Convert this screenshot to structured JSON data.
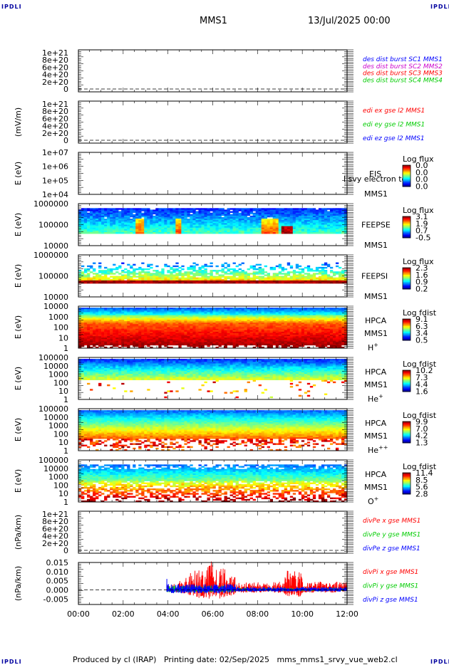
{
  "header": {
    "corner_label": "IPDLI",
    "title": "MMS1",
    "date": "13/Jul/2025 00:00"
  },
  "footer": {
    "producer": "Produced by cl (IRAP)",
    "printing_date": "Printing date: 02/Sep/2025",
    "script": "mms_mms1_srvy_vue_web2.cl"
  },
  "colors": {
    "red": "#ff0000",
    "green": "#00cc00",
    "blue": "#0000ff",
    "magenta": "#cc00cc",
    "navy": "#0000a0"
  },
  "chart_data": [
    {
      "id": "des-dist",
      "type": "line",
      "ylabel": "",
      "yticks": [
        "1e+21",
        "8e+20",
        "6e+20",
        "4e+20",
        "2e+20",
        "0"
      ],
      "ylim": [
        0,
        1e+21
      ],
      "legend": [
        {
          "text": "des dist burst SC1 MMS1",
          "color": "#0000ff"
        },
        {
          "text": "des dist burst SC2 MMS2",
          "color": "#cc00cc"
        },
        {
          "text": "des dist burst SC3 MMS3",
          "color": "#ff0000"
        },
        {
          "text": "des dist burst SC4 MMS4",
          "color": "#00cc00"
        }
      ],
      "series": [],
      "zero_line": true
    },
    {
      "id": "edi-e",
      "type": "line",
      "ylabel": "(mV/m)",
      "yticks": [
        "1e+21",
        "8e+20",
        "6e+20",
        "4e+20",
        "2e+20",
        "0"
      ],
      "ylim": [
        0,
        1e+21
      ],
      "legend": [
        {
          "text": "edi ex gse l2 MMS1",
          "color": "#ff0000"
        },
        {
          "text": "edi ey gse l2 MMS1",
          "color": "#00cc00"
        },
        {
          "text": "edi ez gse l2 MMS1",
          "color": "#0000ff"
        }
      ],
      "series": [],
      "zero_line": true
    },
    {
      "id": "eis",
      "type": "heatmap",
      "ylabel": "E (eV)",
      "yticks": [
        "1e+07",
        "1e+06",
        "1e+05",
        "1e+04"
      ],
      "labels": [
        "EIS",
        "MMS1"
      ],
      "overlay_text": "l svy electron to",
      "colorbar_title": "Log flux",
      "colorbar_ticks": [
        "0.0",
        "0.0",
        "0.0",
        "0.0"
      ],
      "empty": true
    },
    {
      "id": "feeps-e",
      "type": "heatmap",
      "ylabel": "E (eV)",
      "yticks": [
        "1000000",
        "100000",
        "10000"
      ],
      "labels": [
        "FEEPSE",
        "MMS1"
      ],
      "colorbar_title": "Log flux",
      "colorbar_ticks": [
        "3.1",
        "1.9",
        "0.7",
        "-0.5"
      ],
      "empty": false
    },
    {
      "id": "feeps-i",
      "type": "heatmap",
      "ylabel": "E (eV)",
      "yticks": [
        "1000000",
        "100000",
        "10000"
      ],
      "labels": [
        "FEEPSI",
        "MMS1"
      ],
      "colorbar_title": "Log flux",
      "colorbar_ticks": [
        "2.3",
        "1.6",
        "0.9",
        "0.2"
      ],
      "empty": false
    },
    {
      "id": "hpca-h",
      "type": "heatmap",
      "ylabel": "E (eV)",
      "yticks": [
        "10000",
        "1000",
        "100",
        "10",
        "1"
      ],
      "labels": [
        "HPCA",
        "MMS1",
        "H+"
      ],
      "colorbar_title": "Log fdist",
      "colorbar_ticks": [
        "9.1",
        "6.3",
        "3.4",
        "0.5"
      ],
      "empty": false
    },
    {
      "id": "hpca-he",
      "type": "heatmap",
      "ylabel": "E (eV)",
      "yticks": [
        "100000",
        "10000",
        "1000",
        "100",
        "10",
        "1"
      ],
      "labels": [
        "HPCA",
        "MMS1",
        "He+"
      ],
      "colorbar_title": "Log fdist",
      "colorbar_ticks": [
        "10.2",
        "7.3",
        "4.4",
        "1.6"
      ],
      "empty": false
    },
    {
      "id": "hpca-he2",
      "type": "heatmap",
      "ylabel": "E (eV)",
      "yticks": [
        "100000",
        "10000",
        "1000",
        "100",
        "10",
        "1"
      ],
      "labels": [
        "HPCA",
        "MMS1",
        "He++"
      ],
      "colorbar_title": "Log fdist",
      "colorbar_ticks": [
        "9.9",
        "7.0",
        "4.2",
        "1.3"
      ],
      "empty": false
    },
    {
      "id": "hpca-o",
      "type": "heatmap",
      "ylabel": "E (eV)",
      "yticks": [
        "100000",
        "10000",
        "1000",
        "100",
        "10",
        "1"
      ],
      "labels": [
        "HPCA",
        "MMS1",
        "O+"
      ],
      "colorbar_title": "Log fdist",
      "colorbar_ticks": [
        "11.4",
        "8.5",
        "5.6",
        "2.8"
      ],
      "empty": false
    },
    {
      "id": "divpe",
      "type": "line",
      "ylabel": "(nPa/km)",
      "yticks": [
        "1e+21",
        "8e+20",
        "6e+20",
        "4e+20",
        "2e+20",
        "0"
      ],
      "ylim": [
        0,
        1e+21
      ],
      "legend": [
        {
          "text": "divPe x gse MMS1",
          "color": "#ff0000"
        },
        {
          "text": "divPe y gse MMS1",
          "color": "#00cc00"
        },
        {
          "text": "divPe z gse MMS1",
          "color": "#0000ff"
        }
      ],
      "series": [],
      "zero_line": true
    },
    {
      "id": "divpi",
      "type": "line",
      "ylabel": "(nPa/km)",
      "yticks": [
        "0.015",
        "0.010",
        "0.005",
        "0.000",
        "-0.005"
      ],
      "ylim": [
        -0.008,
        0.015
      ],
      "legend": [
        {
          "text": "divPi x gse MMS1",
          "color": "#ff0000"
        },
        {
          "text": "divPi y gse MMS1",
          "color": "#00cc00"
        },
        {
          "text": "divPi z gse MMS1",
          "color": "#0000ff"
        }
      ],
      "series": [
        {
          "name": "divPi x gse MMS1",
          "color": "#ff0000",
          "start_hour": 3.95,
          "end_hour": 12.0,
          "peak": 0.014
        },
        {
          "name": "divPi y gse MMS1",
          "color": "#00cc00",
          "start_hour": 3.95,
          "end_hour": 12.0,
          "peak": 0.003
        },
        {
          "name": "divPi z gse MMS1",
          "color": "#0000ff",
          "start_hour": 3.95,
          "end_hour": 12.0,
          "peak": 0.004
        }
      ],
      "zero_line": true
    }
  ],
  "xaxis": {
    "ticks": [
      "00:00",
      "02:00",
      "04:00",
      "06:00",
      "08:00",
      "10:00",
      "12:00"
    ],
    "range_hours": [
      0,
      12
    ]
  }
}
